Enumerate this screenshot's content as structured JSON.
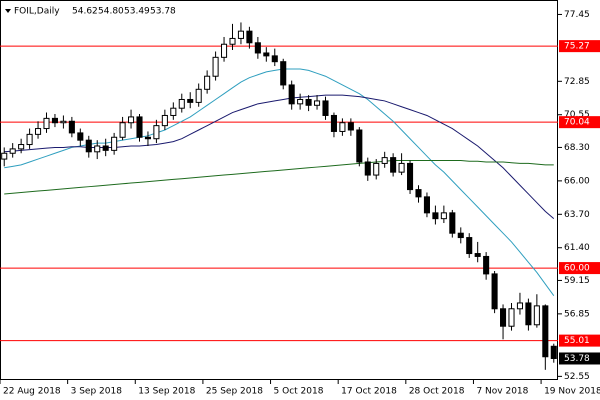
{
  "chart_data": {
    "type": "candlestick",
    "title": "FOIL,Daily",
    "header_values": [
      "54.62",
      "54.80",
      "53.49",
      "53.78"
    ],
    "categories": [
      "22 Aug 2018",
      null,
      null,
      null,
      null,
      null,
      null,
      null,
      "3 Sep 2018",
      null,
      null,
      null,
      null,
      null,
      null,
      null,
      "13 Sep 2018",
      null,
      null,
      null,
      null,
      null,
      null,
      null,
      "25 Sep 2018",
      null,
      null,
      null,
      null,
      null,
      null,
      null,
      "5 Oct 2018",
      null,
      null,
      null,
      null,
      null,
      null,
      null,
      "17 Oct 2018",
      null,
      null,
      null,
      null,
      null,
      null,
      null,
      "28 Oct 2018",
      null,
      null,
      null,
      null,
      null,
      null,
      null,
      "7 Nov 2018",
      null,
      null,
      null,
      null,
      null,
      null,
      null,
      "19 Nov 2018",
      null
    ],
    "open": [
      67.5,
      67.9,
      68.2,
      68.5,
      69.2,
      69.6,
      70.3,
      70.0,
      70.1,
      69.3,
      68.8,
      68.0,
      68.4,
      68.1,
      69.0,
      70.0,
      70.4,
      69.0,
      68.9,
      69.8,
      70.5,
      71.0,
      71.6,
      71.4,
      72.3,
      73.2,
      74.5,
      75.4,
      75.8,
      76.3,
      75.5,
      74.8,
      74.6,
      74.2,
      72.6,
      71.3,
      71.6,
      71.2,
      71.5,
      70.5,
      69.4,
      70.0,
      69.5,
      67.3,
      66.4,
      67.2,
      67.6,
      66.6,
      67.2,
      65.4,
      64.9,
      63.8,
      63.4,
      63.8,
      62.4,
      62.1,
      61.0,
      60.8,
      59.6,
      57.2,
      56.0,
      57.2,
      57.6,
      56.1,
      57.4,
      54.62
    ],
    "high": [
      68.3,
      68.6,
      68.9,
      69.6,
      70.1,
      70.7,
      70.6,
      70.5,
      70.4,
      69.6,
      69.1,
      68.8,
      68.9,
      69.3,
      70.4,
      70.9,
      70.6,
      69.4,
      70.2,
      70.9,
      71.4,
      72.0,
      72.1,
      72.7,
      73.6,
      74.9,
      75.9,
      76.8,
      76.9,
      76.6,
      75.9,
      75.2,
      75.1,
      74.4,
      72.9,
      72.0,
      71.9,
      71.9,
      71.8,
      70.7,
      70.3,
      70.3,
      69.7,
      67.6,
      67.5,
      68.0,
      67.9,
      67.9,
      67.4,
      65.7,
      65.2,
      64.3,
      64.3,
      64.0,
      62.8,
      62.4,
      61.8,
      61.1,
      59.8,
      57.5,
      57.6,
      58.3,
      57.9,
      58.2,
      57.5,
      54.8
    ],
    "low": [
      67.0,
      67.6,
      67.9,
      68.2,
      68.9,
      69.3,
      69.7,
      69.6,
      69.0,
      68.4,
      67.6,
      67.5,
      67.7,
      67.8,
      68.8,
      69.6,
      68.7,
      68.4,
      68.6,
      69.5,
      70.2,
      70.7,
      71.0,
      71.1,
      72.0,
      72.9,
      74.2,
      75.0,
      75.4,
      75.1,
      74.4,
      74.2,
      73.9,
      72.3,
      70.9,
      70.9,
      70.8,
      70.9,
      70.2,
      69.0,
      69.1,
      69.1,
      67.0,
      66.0,
      66.1,
      66.9,
      66.3,
      66.4,
      65.1,
      64.5,
      63.5,
      63.0,
      63.1,
      62.1,
      61.7,
      60.7,
      60.4,
      59.2,
      56.9,
      55.1,
      55.7,
      56.8,
      55.7,
      55.9,
      53.0,
      53.49
    ],
    "close": [
      67.9,
      68.2,
      68.5,
      69.2,
      69.6,
      70.3,
      70.0,
      70.1,
      69.3,
      68.8,
      68.0,
      68.4,
      68.1,
      69.0,
      70.0,
      70.4,
      69.0,
      68.9,
      69.8,
      70.5,
      71.0,
      71.6,
      71.4,
      72.3,
      73.2,
      74.5,
      75.4,
      75.8,
      76.3,
      75.5,
      74.8,
      74.6,
      74.2,
      72.6,
      71.3,
      71.6,
      71.2,
      71.5,
      70.5,
      69.4,
      70.0,
      69.5,
      67.3,
      66.4,
      67.2,
      67.6,
      66.6,
      67.2,
      65.4,
      64.9,
      63.8,
      63.4,
      63.8,
      62.4,
      62.1,
      61.0,
      60.8,
      59.6,
      57.2,
      56.0,
      57.2,
      57.6,
      56.1,
      57.4,
      53.9,
      53.78
    ],
    "bull_color": "#ffffff",
    "bear_color": "#000000",
    "moving_averages": [
      {
        "color": "#2f9fbf",
        "values": [
          66.9,
          67.0,
          67.1,
          67.3,
          67.5,
          67.7,
          67.9,
          68.1,
          68.3,
          68.4,
          68.5,
          68.6,
          68.6,
          68.7,
          68.8,
          68.9,
          69.0,
          69.1,
          69.3,
          69.5,
          69.8,
          70.1,
          70.4,
          70.8,
          71.2,
          71.6,
          72.0,
          72.4,
          72.8,
          73.1,
          73.3,
          73.5,
          73.6,
          73.7,
          73.7,
          73.7,
          73.6,
          73.4,
          73.2,
          72.9,
          72.6,
          72.3,
          72.0,
          71.6,
          71.1,
          70.6,
          70.1,
          69.5,
          68.9,
          68.3,
          67.7,
          67.1,
          66.6,
          66.0,
          65.4,
          64.8,
          64.2,
          63.6,
          63.0,
          62.4,
          61.8,
          61.1,
          60.4,
          59.7,
          58.9,
          58.1
        ]
      },
      {
        "color": "#1a1a6e",
        "values": [
          68.0,
          68.05,
          68.1,
          68.15,
          68.2,
          68.25,
          68.3,
          68.3,
          68.35,
          68.35,
          68.3,
          68.3,
          68.3,
          68.3,
          68.35,
          68.4,
          68.4,
          68.45,
          68.5,
          68.6,
          68.7,
          68.9,
          69.2,
          69.5,
          69.8,
          70.1,
          70.4,
          70.7,
          70.9,
          71.1,
          71.3,
          71.4,
          71.5,
          71.6,
          71.7,
          71.75,
          71.8,
          71.85,
          71.9,
          71.9,
          71.9,
          71.85,
          71.8,
          71.7,
          71.6,
          71.5,
          71.3,
          71.1,
          70.9,
          70.7,
          70.5,
          70.2,
          69.9,
          69.6,
          69.2,
          68.8,
          68.4,
          67.9,
          67.4,
          66.9,
          66.3,
          65.7,
          65.1,
          64.5,
          63.9,
          63.4
        ]
      },
      {
        "color": "#1e6b1e",
        "values": [
          65.1,
          65.15,
          65.2,
          65.25,
          65.3,
          65.35,
          65.4,
          65.45,
          65.5,
          65.55,
          65.6,
          65.65,
          65.7,
          65.75,
          65.8,
          65.85,
          65.9,
          65.95,
          66.0,
          66.05,
          66.1,
          66.15,
          66.2,
          66.25,
          66.3,
          66.35,
          66.4,
          66.45,
          66.5,
          66.55,
          66.6,
          66.65,
          66.7,
          66.75,
          66.8,
          66.85,
          66.9,
          66.95,
          67.0,
          67.05,
          67.1,
          67.15,
          67.2,
          67.25,
          67.3,
          67.35,
          67.4,
          67.4,
          67.4,
          67.4,
          67.4,
          67.4,
          67.4,
          67.4,
          67.4,
          67.35,
          67.35,
          67.3,
          67.3,
          67.3,
          67.25,
          67.2,
          67.2,
          67.15,
          67.1,
          67.1
        ]
      }
    ],
    "levels": {
      "values": [
        75.27,
        70.04,
        60.0,
        55.01
      ],
      "value_labels": [
        "75.27",
        "70.04",
        "60.00",
        "55.01"
      ],
      "color": "#ff0000"
    },
    "last_price": 53.78,
    "ylim": [
      52.3,
      78.1
    ],
    "yticks": [
      77.45,
      72.85,
      70.55,
      {
        "value": 68.3,
        "label": "68.30"
      },
      {
        "value": 66.0,
        "label": "66.00"
      },
      {
        "value": 63.7,
        "label": "63.70"
      },
      {
        "value": 61.4,
        "label": "61.40"
      },
      59.15,
      56.85,
      52.55
    ]
  }
}
